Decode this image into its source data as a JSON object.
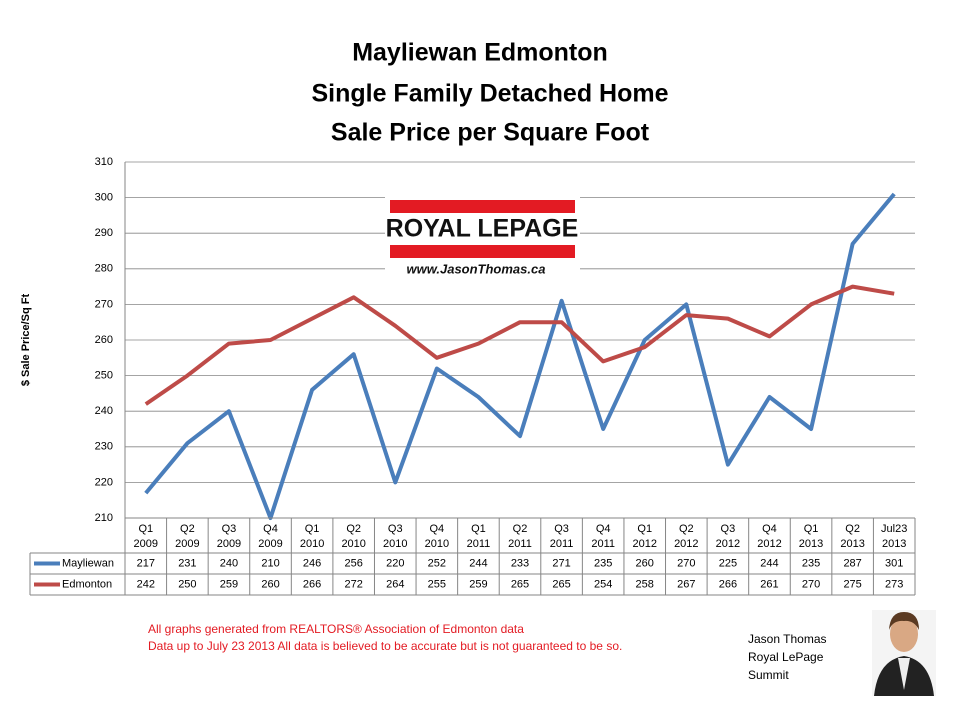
{
  "chart_data": {
    "type": "line",
    "title": [
      "Mayliewan Edmonton",
      "Single Family Detached Home",
      "Sale Price per Square Foot"
    ],
    "y_label": "$ Sale Price/Sq Ft",
    "categories": [
      [
        "Q1",
        "2009"
      ],
      [
        "Q2",
        "2009"
      ],
      [
        "Q3",
        "2009"
      ],
      [
        "Q4",
        "2009"
      ],
      [
        "Q1",
        "2010"
      ],
      [
        "Q2",
        "2010"
      ],
      [
        "Q3",
        "2010"
      ],
      [
        "Q4",
        "2010"
      ],
      [
        "Q1",
        "2011"
      ],
      [
        "Q2",
        "2011"
      ],
      [
        "Q3",
        "2011"
      ],
      [
        "Q4",
        "2011"
      ],
      [
        "Q1",
        "2012"
      ],
      [
        "Q2",
        "2012"
      ],
      [
        "Q3",
        "2012"
      ],
      [
        "Q4",
        "2012"
      ],
      [
        "Q1",
        "2013"
      ],
      [
        "Q2",
        "2013"
      ],
      [
        "Jul23",
        "2013"
      ]
    ],
    "series": [
      {
        "name": "Mayliewan",
        "color": "#4a7ebb",
        "values": [
          217,
          231,
          240,
          210,
          246,
          256,
          220,
          252,
          244,
          233,
          271,
          235,
          260,
          270,
          225,
          244,
          235,
          287,
          301
        ]
      },
      {
        "name": "Edmonton",
        "color": "#be4b48",
        "values": [
          242,
          250,
          259,
          260,
          266,
          272,
          264,
          255,
          259,
          265,
          265,
          254,
          258,
          267,
          266,
          261,
          270,
          275,
          273
        ]
      }
    ],
    "ylim": [
      210,
      310
    ],
    "yticks": [
      210,
      220,
      230,
      240,
      250,
      260,
      270,
      280,
      290,
      300,
      310
    ],
    "grid": true
  },
  "logo": {
    "brand": "ROYAL LEPAGE",
    "url": "www.JasonThomas.ca"
  },
  "notes": [
    "All graphs generated from REALTORS® Association of Edmonton data",
    "Data up to  July 23 2013  All data is believed to be accurate but is not guaranteed to be so."
  ],
  "signature": [
    "Jason Thomas",
    "Royal LePage",
    "Summit"
  ]
}
